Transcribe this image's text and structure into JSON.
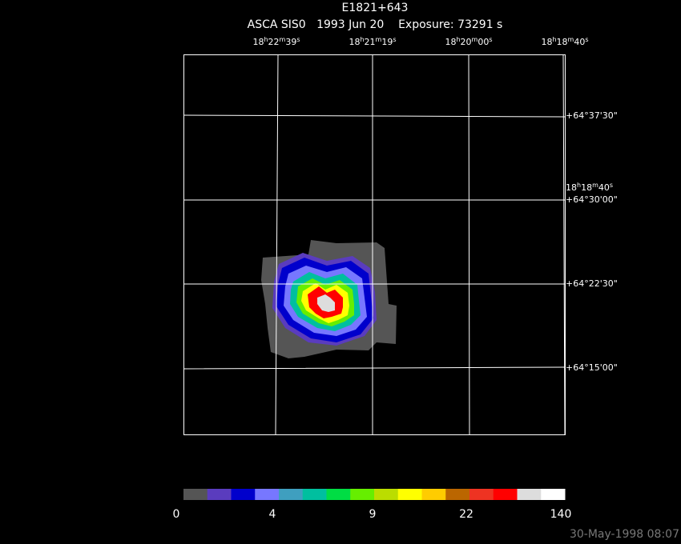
{
  "header": {
    "title": "E1821+643",
    "subtitle": "ASCA SIS0   1993 Jun 20    Exposure: 73291 s"
  },
  "ra_labels": [
    [
      "18",
      "h",
      "22",
      "m",
      "39",
      "s"
    ],
    [
      "18",
      "h",
      "21",
      "m",
      "19",
      "s"
    ],
    [
      "18",
      "h",
      "20",
      "m",
      "00",
      "s"
    ],
    [
      "18",
      "h",
      "18",
      "m",
      "40",
      "s"
    ]
  ],
  "ra_side_label": [
    "18",
    "h",
    "18",
    "m",
    "40",
    "s"
  ],
  "dec_labels": [
    "+64°37'30\"",
    "+64°30'00\"",
    "+64°22'30\"",
    "+64°15'00\""
  ],
  "colorbar": {
    "colors": [
      "#555555",
      "#5a3cbe",
      "#0000cc",
      "#7777ff",
      "#3f9fbf",
      "#00bf9f",
      "#00dd44",
      "#66ee00",
      "#bbdd00",
      "#ffff00",
      "#ffcc00",
      "#bb6600",
      "#ee3322",
      "#ff0000",
      "#dddddd",
      "#ffffff"
    ],
    "labels": [
      "0",
      "4",
      "9",
      "22",
      "140"
    ]
  },
  "timestamp": "30-May-1998 08:07"
}
